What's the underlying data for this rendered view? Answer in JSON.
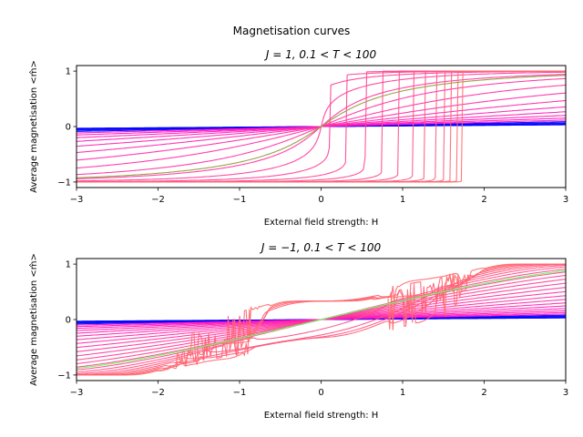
{
  "suptitle": "Magnetisation curves",
  "chart_data": [
    {
      "type": "line",
      "title": "J = 1, 0.1 < T < 100",
      "xlabel": "External field strength: H",
      "ylabel": "Average magnetisation  <m̂>",
      "xlim": [
        -3,
        3
      ],
      "ylim": [
        -1.1,
        1.1
      ],
      "xticks": [
        "−3",
        "−2",
        "−1",
        "0",
        "1",
        "2",
        "3"
      ],
      "yticks": [
        "−1",
        "0",
        "1"
      ],
      "J": 1,
      "temperature_range": [
        0.1,
        100
      ],
      "curve_color_low_T": "#0000ff",
      "curve_color_high_T": "#ff6b6b",
      "highlight_curve_color": "#9aa04a"
    },
    {
      "type": "line",
      "title": "J = −1, 0.1 < T < 100",
      "xlabel": "External field strength: H",
      "ylabel": "Average magnetisation  <m̂>",
      "xlim": [
        -3,
        3
      ],
      "ylim": [
        -1.1,
        1.1
      ],
      "xticks": [
        "−3",
        "−2",
        "−1",
        "0",
        "1",
        "2",
        "3"
      ],
      "yticks": [
        "−1",
        "0",
        "1"
      ],
      "J": -1,
      "temperature_range": [
        0.1,
        100
      ],
      "curve_color_low_T": "#0000ff",
      "curve_color_high_T": "#ff6b6b",
      "highlight_curve_color": "#66ff66"
    }
  ]
}
